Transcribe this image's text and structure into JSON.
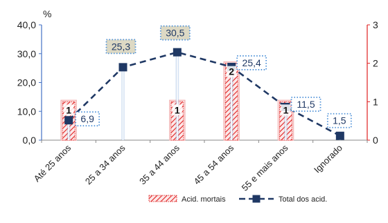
{
  "chart_data": {
    "type": "bar",
    "left_axis_unit": "%",
    "categories": [
      "Até 25 anos",
      "25 a 34 anos",
      "35 a 44 anos",
      "45 a 54 anos",
      "55 e mais anos",
      "Ignorado"
    ],
    "left_axis": {
      "ylim": [
        0,
        40
      ],
      "ticks": [
        "0,0",
        "10,0",
        "20,0",
        "30,0",
        "40,0"
      ]
    },
    "right_axis": {
      "ylim": [
        0,
        3
      ],
      "ticks": [
        "0",
        "1",
        "2",
        "3"
      ]
    },
    "series": [
      {
        "name": "Acid. mortais",
        "type": "bar",
        "axis": "right",
        "values": [
          1,
          0,
          1,
          2,
          1,
          0
        ],
        "labels": [
          "1",
          "",
          "1",
          "2",
          "1",
          ""
        ],
        "color": "#e02020"
      },
      {
        "name": "Total dos acid.",
        "type": "line",
        "axis": "left",
        "values": [
          6.9,
          25.3,
          30.5,
          25.4,
          11.5,
          1.5
        ],
        "labels": [
          "6,9",
          "25,3",
          "30,5",
          "25,4",
          "11,5",
          "1,5"
        ],
        "color": "#1f3864"
      }
    ],
    "legend": [
      "Acid. mortais",
      "Total dos acid."
    ],
    "legend_placement": "bottom",
    "grid": false
  }
}
